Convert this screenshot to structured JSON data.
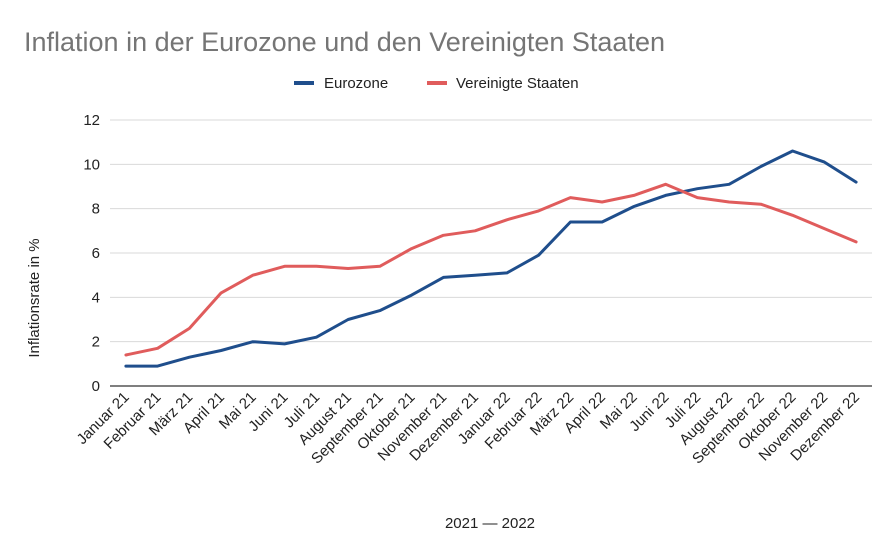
{
  "chart_data": {
    "type": "line",
    "title": "Inflation in der Eurozone und den Vereinigten Staaten",
    "xlabel": "2021 — 2022",
    "ylabel": "Inflationsrate in %",
    "ylim": [
      0,
      12
    ],
    "yticks": [
      "0",
      "2",
      "4",
      "6",
      "8",
      "10",
      "12"
    ],
    "grid": true,
    "legend_position": "top",
    "categories": [
      "Januar 21",
      "Februar 21",
      "März 21",
      "April 21",
      "Mai 21",
      "Juni 21",
      "Juli 21",
      "August 21",
      "September 21",
      "Oktober 21",
      "November 21",
      "Dezember 21",
      "Januar 22",
      "Februar 22",
      "März 22",
      "April 22",
      "Mai 22",
      "Juni 22",
      "Juli 22",
      "August 22",
      "September 22",
      "Oktober 22",
      "November 22",
      "Dezember 22"
    ],
    "series": [
      {
        "name": "Eurozone",
        "color": "#1f4e8c",
        "values": [
          0.9,
          0.9,
          1.3,
          1.6,
          2.0,
          1.9,
          2.2,
          3.0,
          3.4,
          4.1,
          4.9,
          5.0,
          5.1,
          5.9,
          7.4,
          7.4,
          8.1,
          8.6,
          8.9,
          9.1,
          9.9,
          10.6,
          10.1,
          9.2
        ]
      },
      {
        "name": "Vereinigte Staaten",
        "color": "#e05c5c",
        "values": [
          1.4,
          1.7,
          2.6,
          4.2,
          5.0,
          5.4,
          5.4,
          5.3,
          5.4,
          6.2,
          6.8,
          7.0,
          7.5,
          7.9,
          8.5,
          8.3,
          8.6,
          9.1,
          8.5,
          8.3,
          8.2,
          7.7,
          7.1,
          6.5
        ]
      }
    ]
  }
}
